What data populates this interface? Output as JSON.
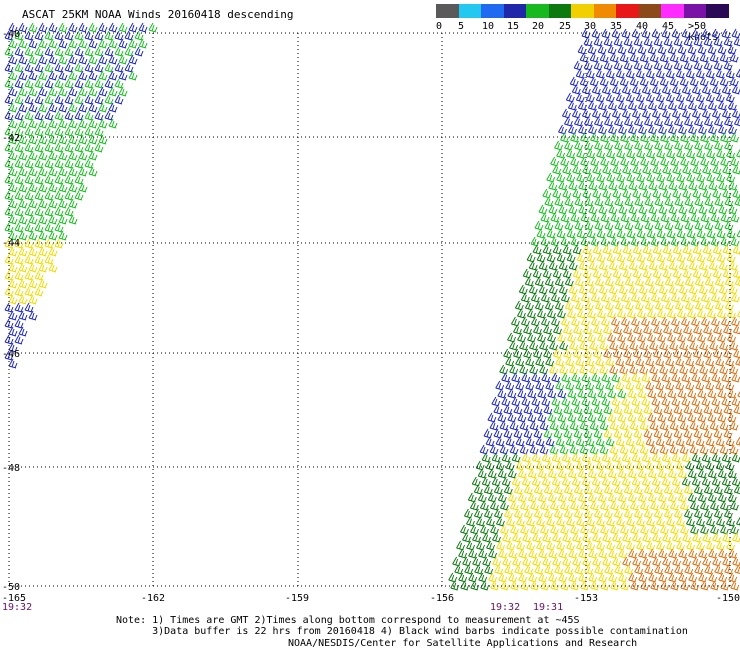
{
  "title": "ASCAT 25KM NOAA Winds 20160418 descending",
  "scale": {
    "labels": [
      "0",
      "5",
      "10",
      "15",
      "20",
      "25",
      "30",
      "35",
      "40",
      "45",
      ">50 knots"
    ],
    "colors": [
      "#5a5a5a",
      "#22c8f0",
      "#1f6af0",
      "#1e28a8",
      "#18b820",
      "#0d7a10",
      "#f0d000",
      "#f08a00",
      "#e81818",
      "#8c4a1a",
      "#ff2cff",
      "#7a12a8",
      "#2a0a55"
    ]
  },
  "axes": {
    "lon_labels": [
      "-165",
      "-162",
      "-159",
      "-156",
      "-153",
      "-150"
    ],
    "lat_labels": [
      "-40",
      "-42",
      "-44",
      "-46",
      "-48",
      "-50"
    ]
  },
  "times": {
    "left_pass": "19:32",
    "right_pass_a": "19:32",
    "right_pass_b": "19:31"
  },
  "notes": {
    "line1": "Note: 1) Times are GMT 2)Times along bottom correspond to measurement at ~45S",
    "line2": "      3)Data buffer is 22 hrs from 20160418 4) Black wind barbs indicate possible contamination"
  },
  "credit": "NOAA/NESDIS/Center for Satellite Applications and Research",
  "colors": {
    "blue": "#1e28c8",
    "green": "#18c020",
    "dark_green": "#0d7a10",
    "yellow": "#f4dc00",
    "orange": "#e07010",
    "grid": "#000000"
  }
}
